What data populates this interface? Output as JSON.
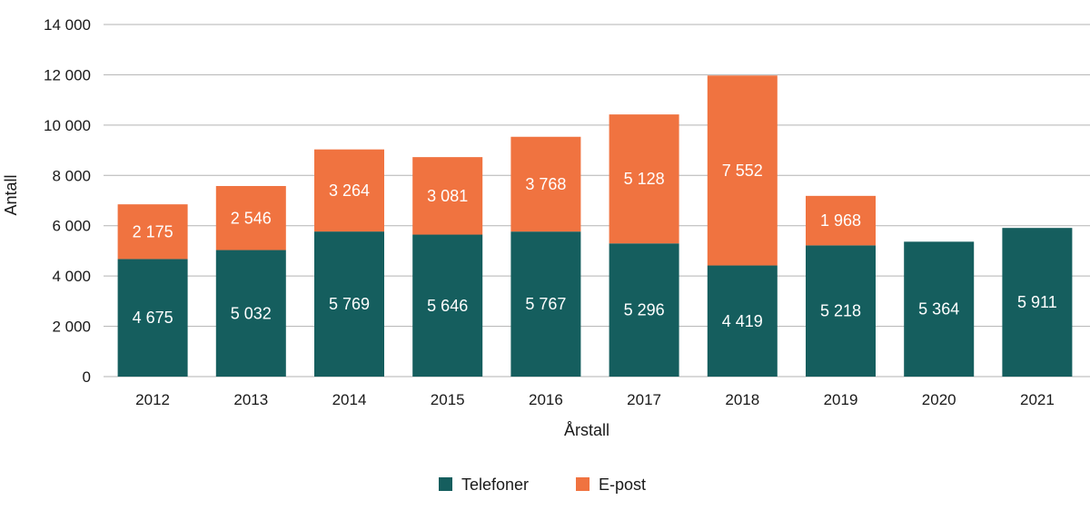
{
  "chart_data": {
    "type": "bar",
    "stacked": true,
    "categories": [
      "2012",
      "2013",
      "2014",
      "2015",
      "2016",
      "2017",
      "2018",
      "2019",
      "2020",
      "2021"
    ],
    "series": [
      {
        "name": "Telefoner",
        "color": "#155e5e",
        "values": [
          4675,
          5032,
          5769,
          5646,
          5767,
          5296,
          4419,
          5218,
          5364,
          5911
        ],
        "labels": [
          "4 675",
          "5 032",
          "5 769",
          "5 646",
          "5 767",
          "5 296",
          "4 419",
          "5 218",
          "5 364",
          "5 911"
        ]
      },
      {
        "name": "E-post",
        "color": "#f07340",
        "values": [
          2175,
          2546,
          3264,
          3081,
          3768,
          5128,
          7552,
          1968,
          null,
          null
        ],
        "labels": [
          "2 175",
          "2 546",
          "3 264",
          "3 081",
          "3 768",
          "5 128",
          "7 552",
          "1 968",
          "",
          ""
        ]
      }
    ],
    "xlabel": "Årstall",
    "ylabel": "Antall",
    "ylim": [
      0,
      14000
    ],
    "yticks": [
      0,
      2000,
      4000,
      6000,
      8000,
      10000,
      12000,
      14000
    ],
    "ytick_labels": [
      "0",
      "2 000",
      "4 000",
      "6 000",
      "8 000",
      "10 000",
      "12 000",
      "14 000"
    ],
    "grid": true,
    "legend_position": "bottom"
  }
}
